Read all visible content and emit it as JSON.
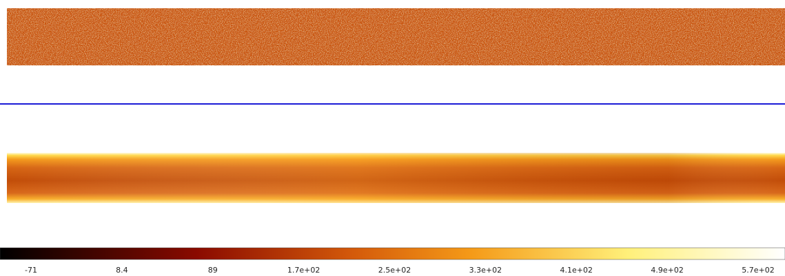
{
  "colorbar": {
    "labels": [
      "-71",
      "8.4",
      "89",
      "1.7e+02",
      "2.5e+02",
      "3.3e+02",
      "4.1e+02",
      "4.9e+02",
      "5.7e+02"
    ]
  }
}
